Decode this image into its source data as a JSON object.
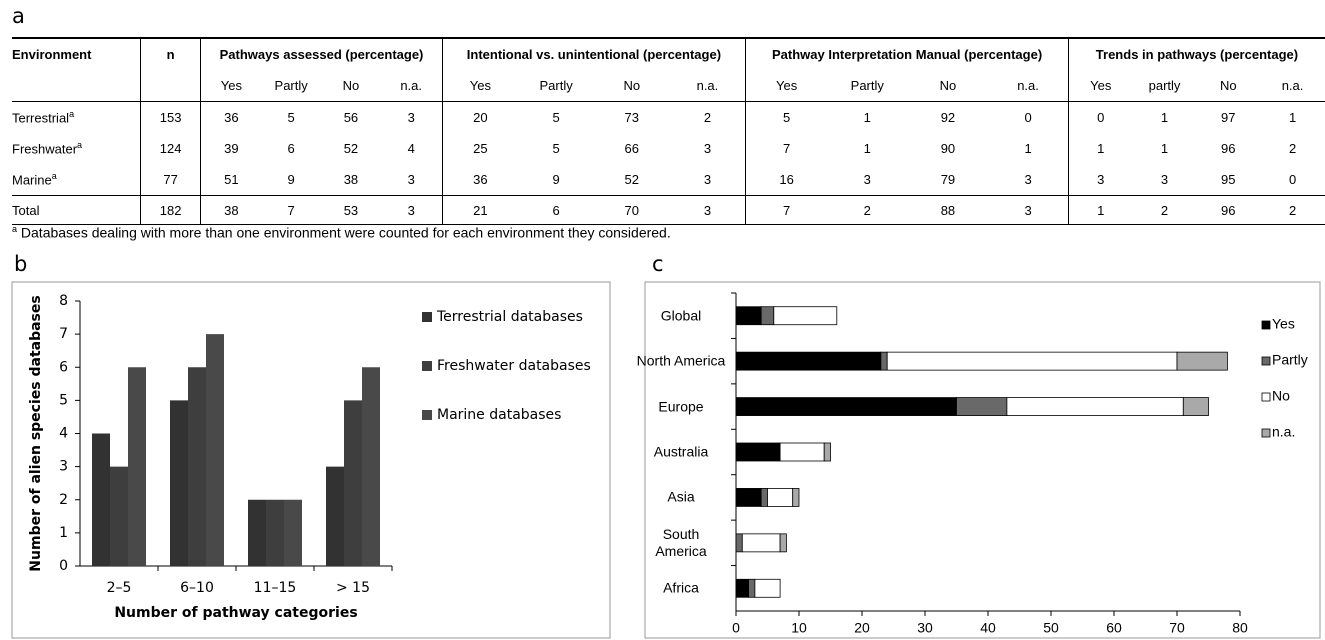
{
  "table": {
    "label": "a",
    "groups": [
      "Environment",
      "n",
      "Pathways assessed (percentage)",
      "Intentional vs. unintentional (percentage)",
      "Pathway Interpretation Manual (percentage)",
      "Trends in pathways (percentage)"
    ],
    "subheaders": [
      "Yes",
      "Partly",
      "No",
      "n.a.",
      "Yes",
      "Partly",
      "No",
      "n.a.",
      "Yes",
      "Partly",
      "No",
      "n.a.",
      "Yes",
      "partly",
      "No",
      "n.a."
    ],
    "note_mark": "a",
    "rows": [
      {
        "name": "Terrestrial",
        "marked": true,
        "cells": [
          153,
          36,
          5,
          56,
          3,
          20,
          5,
          73,
          2,
          5,
          1,
          92,
          0,
          0,
          1,
          97,
          1
        ]
      },
      {
        "name": "Freshwater",
        "marked": true,
        "cells": [
          124,
          39,
          6,
          52,
          4,
          25,
          5,
          66,
          3,
          7,
          1,
          90,
          1,
          1,
          1,
          96,
          2
        ]
      },
      {
        "name": "Marine",
        "marked": true,
        "cells": [
          77,
          51,
          9,
          38,
          3,
          36,
          9,
          52,
          3,
          16,
          3,
          79,
          3,
          3,
          3,
          95,
          0
        ]
      },
      {
        "name": "Total",
        "marked": false,
        "cells": [
          182,
          38,
          7,
          53,
          3,
          21,
          6,
          70,
          3,
          7,
          2,
          88,
          3,
          1,
          2,
          96,
          2
        ]
      }
    ],
    "footnote": "Databases dealing with more than one environment were counted for each environment they considered."
  },
  "chart_data": [
    {
      "type": "bar",
      "label": "b",
      "x_label": "Number of pathway categories",
      "y_label": "Number of alien species databases",
      "categories": [
        "2–5",
        "6–10",
        "11–15",
        "> 15"
      ],
      "series": [
        {
          "name": "Terrestrial databases",
          "color": "#323232",
          "values": [
            4,
            5,
            2,
            3
          ]
        },
        {
          "name": "Freshwater databases",
          "color": "#3e3e3e",
          "values": [
            3,
            6,
            2,
            5
          ]
        },
        {
          "name": "Marine databases",
          "color": "#494949",
          "values": [
            6,
            7,
            2,
            6
          ]
        }
      ],
      "ylim": [
        0,
        8
      ],
      "yticks": [
        0,
        1,
        2,
        3,
        4,
        5,
        6,
        7,
        8
      ],
      "legend": "right"
    },
    {
      "type": "barh",
      "label": "c",
      "stacked": true,
      "categories": [
        "Global",
        "North America",
        "Europe",
        "Australia",
        "Asia",
        "South America",
        "Africa"
      ],
      "series": [
        {
          "name": "Yes",
          "color": "#000000",
          "values": [
            4,
            23,
            35,
            7,
            4,
            0,
            2
          ]
        },
        {
          "name": "Partly",
          "color": "#696969",
          "values": [
            2,
            1,
            8,
            0,
            1,
            1,
            1
          ]
        },
        {
          "name": "No",
          "color": "#ffffff",
          "values": [
            10,
            46,
            28,
            7,
            4,
            6,
            4
          ]
        },
        {
          "name": "n.a.",
          "color": "#a9a9a9",
          "values": [
            0,
            8,
            4,
            1,
            1,
            1,
            0
          ]
        }
      ],
      "xlim": [
        0,
        80
      ],
      "xticks": [
        0,
        10,
        20,
        30,
        40,
        50,
        60,
        70,
        80
      ],
      "legend": "right"
    }
  ]
}
